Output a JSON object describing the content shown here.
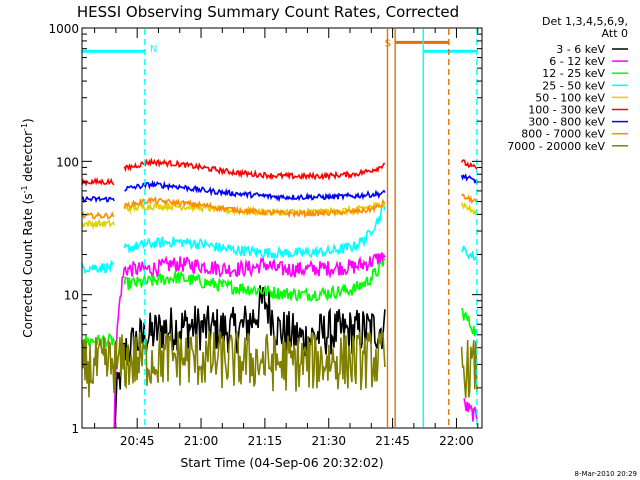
{
  "chart_data": {
    "type": "line",
    "title": "HESSI Observing Summary Count Rates, Corrected",
    "xlabel": "Start Time (04-Sep-06 20:32:02)",
    "ylabel_main": "Corrected Count Rate (s",
    "ylabel_sup1": "-1",
    "ylabel_mid": " detector",
    "ylabel_sup2": "-1",
    "ylabel_end": ")",
    "yscale": "log",
    "ylim": [
      1,
      1000
    ],
    "yticks": [
      {
        "v": 1,
        "label": "1"
      },
      {
        "v": 10,
        "label": "10"
      },
      {
        "v": 100,
        "label": "100"
      },
      {
        "v": 1000,
        "label": "1000"
      }
    ],
    "xlim": [
      20.534,
      22.1
    ],
    "xticks": [
      {
        "v": 20.75,
        "label": "20:45"
      },
      {
        "v": 21.0,
        "label": "21:00"
      },
      {
        "v": 21.25,
        "label": "21:15"
      },
      {
        "v": 21.5,
        "label": "21:30"
      },
      {
        "v": 21.75,
        "label": "21:45"
      },
      {
        "v": 22.0,
        "label": "22:00"
      }
    ],
    "legend_header": [
      "Det 1,3,4,5,6,9,",
      "Att 0"
    ],
    "legend": [
      {
        "label": "3 - 6 keV",
        "color": "#000000"
      },
      {
        "label": "6 - 12 keV",
        "color": "#ff00ff"
      },
      {
        "label": "12 - 25 keV",
        "color": "#00ff00"
      },
      {
        "label": "25 - 50 keV",
        "color": "#00ffff"
      },
      {
        "label": "50 - 100 keV",
        "color": "#e0d000"
      },
      {
        "label": "100 - 300 keV",
        "color": "#ff0000"
      },
      {
        "label": "300 - 800 keV",
        "color": "#0000ff"
      },
      {
        "label": "800 - 7000 keV",
        "color": "#ff8c00"
      },
      {
        "label": "7000 - 20000 keV",
        "color": "#808000"
      }
    ],
    "flags": [
      {
        "label": "N",
        "color": "#00ffff",
        "x_start": 20.534,
        "x_end": 20.78,
        "y": 670
      },
      {
        "label": "S",
        "color": "#e07000",
        "x_start": 21.76,
        "x_end": 21.97,
        "y": 780
      },
      {
        "label": "",
        "color": "#00ffff",
        "x_start": 21.87,
        "x_end": 22.08,
        "y": 670
      }
    ],
    "vlines": [
      {
        "x": 20.78,
        "color": "#00ffff",
        "style": "dashed"
      },
      {
        "x": 21.87,
        "color": "#00ffff",
        "style": "solid"
      },
      {
        "x": 22.08,
        "color": "#00ffff",
        "style": "dashed"
      },
      {
        "x": 21.73,
        "color": "#e07000",
        "style": "solid"
      },
      {
        "x": 21.76,
        "color": "#e07000",
        "style": "solid"
      },
      {
        "x": 21.97,
        "color": "#e07000",
        "style": "dashed"
      }
    ],
    "series": [
      {
        "name": "3 - 6 keV",
        "color": "#000000",
        "segments": [
          {
            "x": [
              20.66,
              20.7,
              20.75,
              20.85,
              20.95,
              21.05,
              21.15,
              21.2,
              21.25,
              21.3,
              21.4,
              21.5,
              21.6,
              21.72
            ],
            "y": [
              1,
              3.6,
              4.5,
              5.5,
              5.8,
              5.5,
              5.4,
              6.5,
              9.0,
              5.5,
              4.6,
              5.2,
              5.3,
              5.6
            ]
          }
        ]
      },
      {
        "name": "6 - 12 keV",
        "color": "#ff00ff",
        "segments": [
          {
            "x": [
              20.66,
              20.7,
              20.8,
              20.9,
              21.0,
              21.1,
              21.2,
              21.25,
              21.3,
              21.4,
              21.5,
              21.6,
              21.65,
              21.72
            ],
            "y": [
              1,
              15.5,
              15.5,
              17,
              16.5,
              15.5,
              15.8,
              17,
              15.5,
              15.5,
              15.8,
              16.2,
              17.2,
              19.5
            ]
          },
          {
            "x": [
              22.03,
              22.06,
              22.08
            ],
            "y": [
              1.5,
              1.3,
              1.2
            ]
          }
        ]
      },
      {
        "name": "12 - 25 keV",
        "color": "#00ff00",
        "segments": [
          {
            "x": [
              20.534,
              20.6,
              20.66
            ],
            "y": [
              4.5,
              4.5,
              4.5
            ]
          },
          {
            "x": [
              20.7,
              20.8,
              20.9,
              21.0,
              21.1,
              21.2,
              21.3,
              21.4,
              21.5,
              21.6,
              21.65,
              21.7,
              21.72
            ],
            "y": [
              12.0,
              12.5,
              13.5,
              12.5,
              11.5,
              11.0,
              10.3,
              10.0,
              10.3,
              11.0,
              12.5,
              15.5,
              18.5
            ]
          },
          {
            "x": [
              22.02,
              22.05,
              22.08
            ],
            "y": [
              7.5,
              6.2,
              5.0
            ]
          }
        ]
      },
      {
        "name": "25 - 50 keV",
        "color": "#00ffff",
        "segments": [
          {
            "x": [
              20.534,
              20.6,
              20.66
            ],
            "y": [
              16,
              16,
              16
            ]
          },
          {
            "x": [
              20.7,
              20.8,
              20.9,
              21.0,
              21.1,
              21.2,
              21.3,
              21.4,
              21.5,
              21.6,
              21.65,
              21.7,
              21.72
            ],
            "y": [
              22,
              24,
              25,
              24,
              22,
              21,
              20.5,
              20.5,
              21,
              23,
              27,
              38,
              47
            ]
          },
          {
            "x": [
              22.02,
              22.05,
              22.08
            ],
            "y": [
              22,
              20,
              19
            ]
          }
        ]
      },
      {
        "name": "50 - 100 keV",
        "color": "#e0d000",
        "segments": [
          {
            "x": [
              20.534,
              20.6,
              20.66
            ],
            "y": [
              34,
              34,
              34
            ]
          },
          {
            "x": [
              20.7,
              20.8,
              20.9,
              21.0,
              21.1,
              21.2,
              21.3,
              21.4,
              21.5,
              21.6,
              21.65,
              21.7,
              21.72
            ],
            "y": [
              44,
              46,
              46,
              45,
              43,
              42,
              41.5,
              41.5,
              42,
              43,
              45,
              47,
              49
            ]
          },
          {
            "x": [
              22.02,
              22.05,
              22.08
            ],
            "y": [
              48,
              44,
              40
            ]
          }
        ]
      },
      {
        "name": "100 - 300 keV",
        "color": "#ff0000",
        "segments": [
          {
            "x": [
              20.534,
              20.6,
              20.66
            ],
            "y": [
              70,
              70,
              70
            ]
          },
          {
            "x": [
              20.7,
              20.8,
              20.9,
              21.0,
              21.1,
              21.2,
              21.3,
              21.4,
              21.5,
              21.6,
              21.65,
              21.7,
              21.72
            ],
            "y": [
              88,
              99,
              96,
              90,
              84,
              80,
              78,
              77,
              78,
              80,
              84,
              90,
              98
            ]
          },
          {
            "x": [
              22.02,
              22.05,
              22.08
            ],
            "y": [
              100,
              93,
              88
            ]
          }
        ]
      },
      {
        "name": "300 - 800 keV",
        "color": "#0000ff",
        "segments": [
          {
            "x": [
              20.534,
              20.6,
              20.66
            ],
            "y": [
              52,
              52,
              52
            ]
          },
          {
            "x": [
              20.7,
              20.8,
              20.9,
              21.0,
              21.1,
              21.2,
              21.3,
              21.4,
              21.5,
              21.6,
              21.65,
              21.7,
              21.72
            ],
            "y": [
              62,
              67,
              65,
              61,
              58,
              56,
              54,
              54,
              54,
              55,
              56,
              57,
              58
            ]
          },
          {
            "x": [
              22.02,
              22.05,
              22.08
            ],
            "y": [
              78,
              74,
              70
            ]
          }
        ]
      },
      {
        "name": "800 - 7000 keV",
        "color": "#ff8c00",
        "segments": [
          {
            "x": [
              20.534,
              20.6,
              20.66
            ],
            "y": [
              39,
              39,
              39
            ]
          },
          {
            "x": [
              20.7,
              20.8,
              20.9,
              21.0,
              21.1,
              21.2,
              21.3,
              21.4,
              21.5,
              21.6,
              21.65,
              21.7,
              21.72
            ],
            "y": [
              46,
              51,
              49,
              47,
              44,
              42,
              41,
              40.5,
              41,
              42,
              43,
              46,
              50
            ]
          },
          {
            "x": [
              22.02,
              22.05,
              22.08
            ],
            "y": [
              55,
              52,
              50
            ]
          }
        ]
      },
      {
        "name": "7000 - 20000 keV",
        "color": "#808000",
        "segments": [
          {
            "x": [
              20.534,
              20.6,
              20.66,
              20.7,
              20.8,
              20.9,
              21.0,
              21.1,
              21.2,
              21.3,
              21.4,
              21.5,
              21.6,
              21.72
            ],
            "y": [
              2.8,
              2.9,
              3.0,
              3.1,
              3.3,
              3.4,
              3.3,
              3.2,
              3.2,
              3.1,
              3.1,
              3.2,
              3.2,
              3.3
            ]
          },
          {
            "x": [
              22.02,
              22.05,
              22.08
            ],
            "y": [
              2.8,
              2.8,
              2.8
            ]
          }
        ]
      }
    ]
  },
  "footer_date": "8-Mar-2010 20:29"
}
